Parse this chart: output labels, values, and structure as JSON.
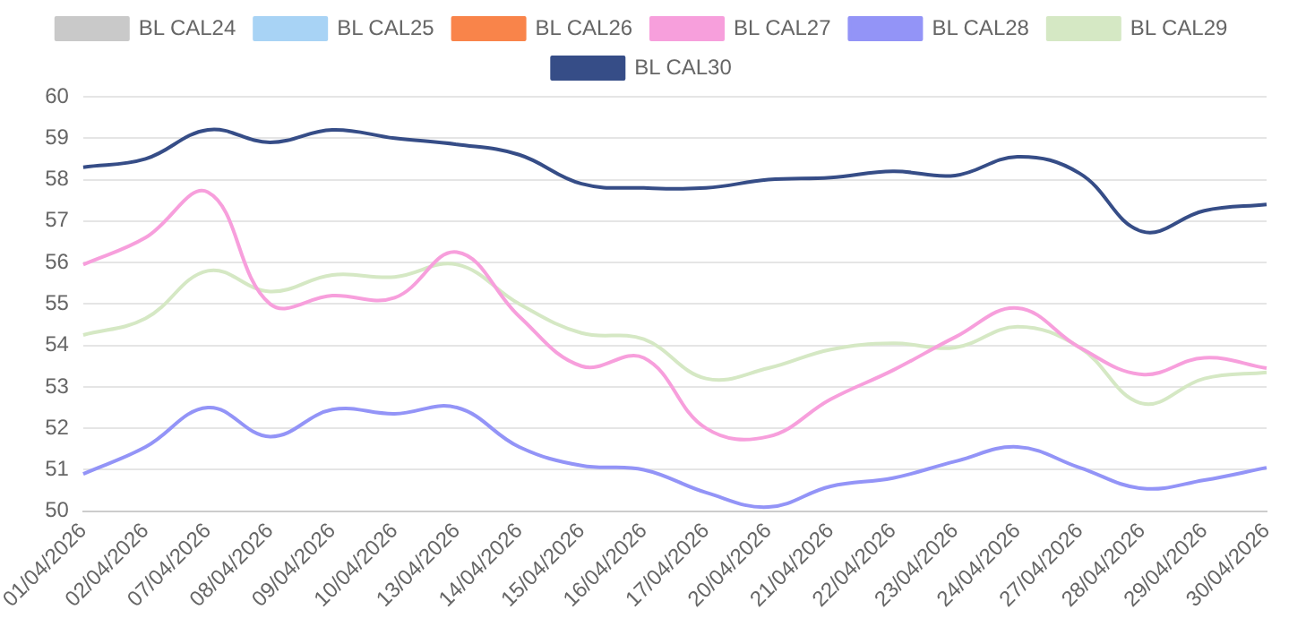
{
  "chart_data": {
    "type": "line",
    "categories": [
      "01/04/2026",
      "02/04/2026",
      "07/04/2026",
      "08/04/2026",
      "09/04/2026",
      "10/04/2026",
      "13/04/2026",
      "14/04/2026",
      "15/04/2026",
      "16/04/2026",
      "17/04/2026",
      "20/04/2026",
      "21/04/2026",
      "22/04/2026",
      "23/04/2026",
      "24/04/2026",
      "27/04/2026",
      "28/04/2026",
      "29/04/2026",
      "30/04/2026"
    ],
    "series": [
      {
        "name": "BL CAL24",
        "color": "#c9c9c9",
        "values": [
          null,
          null,
          null,
          null,
          null,
          null,
          null,
          null,
          null,
          null,
          null,
          null,
          null,
          null,
          null,
          null,
          null,
          null,
          null,
          null
        ]
      },
      {
        "name": "BL CAL25",
        "color": "#a8d3f5",
        "values": [
          null,
          null,
          null,
          null,
          null,
          null,
          null,
          null,
          null,
          null,
          null,
          null,
          null,
          null,
          null,
          null,
          null,
          null,
          null,
          null
        ]
      },
      {
        "name": "BL CAL26",
        "color": "#f9844a",
        "values": [
          null,
          null,
          null,
          null,
          null,
          null,
          null,
          null,
          null,
          null,
          null,
          null,
          null,
          null,
          null,
          null,
          null,
          null,
          null,
          null
        ]
      },
      {
        "name": "BL CAL27",
        "color": "#f79fdc",
        "values": [
          55.95,
          56.6,
          57.7,
          55.0,
          55.2,
          55.15,
          56.25,
          54.7,
          53.5,
          53.7,
          52.0,
          51.8,
          52.7,
          53.4,
          54.2,
          54.9,
          53.95,
          53.3,
          53.7,
          53.45
        ]
      },
      {
        "name": "BL CAL28",
        "color": "#9394f7",
        "values": [
          50.9,
          51.55,
          52.5,
          51.8,
          52.45,
          52.35,
          52.5,
          51.55,
          51.1,
          51.0,
          50.45,
          50.1,
          50.6,
          50.8,
          51.2,
          51.55,
          51.05,
          50.55,
          50.75,
          51.05
        ]
      },
      {
        "name": "BL CAL29",
        "color": "#d5e8c4",
        "values": [
          54.25,
          54.65,
          55.8,
          55.3,
          55.7,
          55.65,
          55.95,
          55.0,
          54.3,
          54.15,
          53.2,
          53.45,
          53.9,
          54.05,
          53.95,
          54.45,
          53.95,
          52.6,
          53.2,
          53.35
        ]
      },
      {
        "name": "BL CAL30",
        "color": "#364d87",
        "values": [
          58.3,
          58.5,
          59.2,
          58.9,
          59.2,
          59.0,
          58.85,
          58.6,
          57.9,
          57.8,
          57.8,
          58.0,
          58.05,
          58.2,
          58.1,
          58.55,
          58.15,
          56.75,
          57.25,
          57.4
        ]
      }
    ],
    "ylim": [
      50,
      60
    ],
    "yticks": [
      50,
      51,
      52,
      53,
      54,
      55,
      56,
      57,
      58,
      59,
      60
    ],
    "grid": "y",
    "legend": "top",
    "marker": "none",
    "line_style": "solid"
  }
}
